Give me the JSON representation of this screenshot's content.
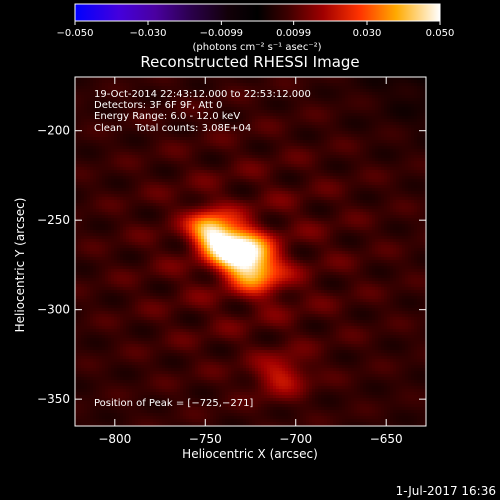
{
  "chart_data": {
    "type": "heatmap",
    "title": "Reconstructed RHESSI Image",
    "xlabel": "Heliocentric X (arcsec)",
    "ylabel": "Heliocentric Y (arcsec)",
    "xlim": [
      -822,
      -628
    ],
    "ylim": [
      -365,
      -170
    ],
    "x_ticks": [
      -800,
      -750,
      -700,
      -650
    ],
    "x_tick_labels": [
      "−800",
      "−750",
      "−700",
      "−650"
    ],
    "y_ticks": [
      -200,
      -250,
      -300,
      -350
    ],
    "y_tick_labels": [
      "−200",
      "−250",
      "−300",
      "−350"
    ],
    "colorbar": {
      "range": [
        -0.05,
        0.05
      ],
      "ticks": [
        -0.05,
        -0.03,
        -0.0099,
        0.0099,
        0.03,
        0.05
      ],
      "tick_labels": [
        "−0.050",
        "−0.030",
        "−0.0099",
        "0.0099",
        "0.030",
        "0.050"
      ],
      "unit_label": "(photons cm⁻² s⁻¹ asec⁻²)"
    },
    "info_lines": [
      "19-Oct-2014 22:43:12.000 to 22:53:12.000",
      "Detectors: 3F 6F 9F, Att 0",
      "Energy Range: 6.0 - 12.0 keV",
      "Clean    Total counts: 3.08E+04"
    ],
    "peak_label": "Position of Peak = [−725,−271]",
    "peak_position": [
      -725,
      -271
    ],
    "sources": [
      {
        "x": -729,
        "y": -270,
        "peak": 0.05,
        "sx": 14,
        "sy": 9,
        "angle": -40
      },
      {
        "x": -747,
        "y": -257,
        "peak": 0.028,
        "sx": 9,
        "sy": 7,
        "angle": -40
      },
      {
        "x": -708,
        "y": -337,
        "peak": 0.014,
        "sx": 10,
        "sy": 8,
        "angle": 0
      }
    ]
  },
  "footer": {
    "timestamp": "1-Jul-2017 16:36"
  }
}
